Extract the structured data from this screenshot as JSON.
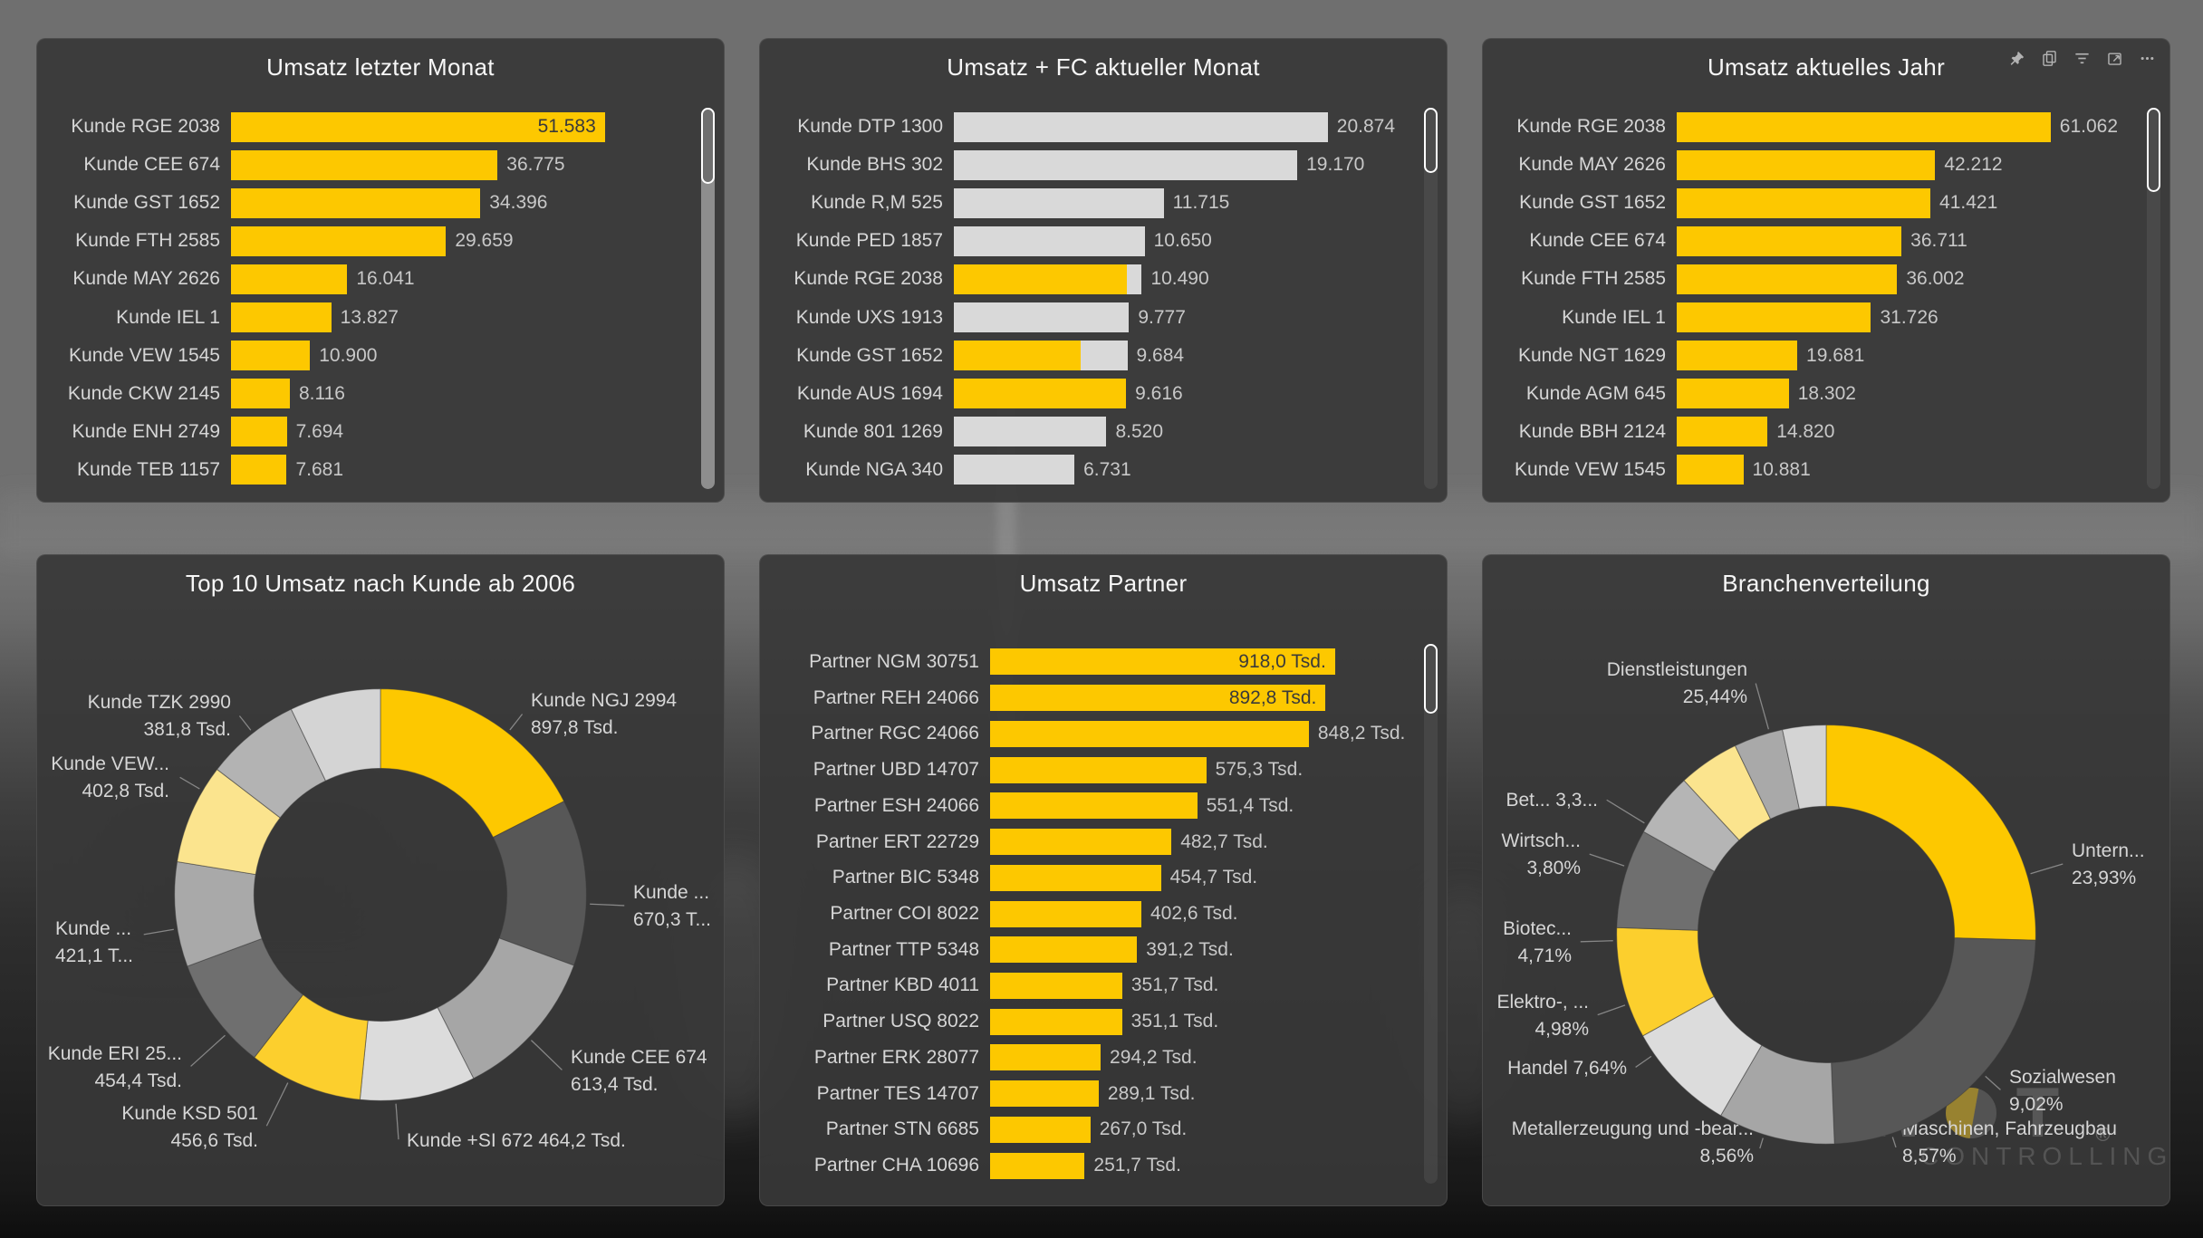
{
  "watermark": {
    "part1": "SW",
    "part2": "T",
    "registered": "®",
    "subtitle": "CONTROLLING"
  },
  "ui": {
    "visual_header_icons": [
      "pin",
      "copy",
      "filter",
      "focus-mode",
      "more-options"
    ],
    "accent_color": "#FDC800",
    "panel_background": "#3A3A3A"
  },
  "chart_data": [
    {
      "id": "umsatz-letzter-monat",
      "type": "bar",
      "orientation": "horizontal",
      "title": "Umsatz letzter Monat",
      "bar_color": "#FDC800",
      "categories": [
        "Kunde RGE 2038",
        "Kunde CEE 674",
        "Kunde GST 1652",
        "Kunde FTH 2585",
        "Kunde MAY 2626",
        "Kunde IEL 1",
        "Kunde VEW 1545",
        "Kunde CKW 2145",
        "Kunde ENH 2749",
        "Kunde TEB 1157"
      ],
      "values": [
        51583,
        36775,
        34396,
        29659,
        16041,
        13827,
        10900,
        8116,
        7694,
        7681
      ],
      "value_labels": [
        "51.583",
        "36.775",
        "34.396",
        "29.659",
        "16.041",
        "13.827",
        "10.900",
        "8.116",
        "7.694",
        "7.681"
      ],
      "inside_labels": [
        true,
        false,
        false,
        false,
        false,
        false,
        false,
        false,
        false,
        false
      ]
    },
    {
      "id": "umsatz-fc-aktueller-monat",
      "type": "bar",
      "orientation": "horizontal",
      "title": "Umsatz + FC aktueller Monat",
      "actual_color": "#FDC800",
      "forecast_color": "#D9D9D9",
      "categories": [
        "Kunde DTP 1300",
        "Kunde BHS 302",
        "Kunde R,M 525",
        "Kunde PED 1857",
        "Kunde RGE 2038",
        "Kunde UXS 1913",
        "Kunde GST 1652",
        "Kunde AUS 1694",
        "Kunde 801 1269",
        "Kunde NGA 340"
      ],
      "values": [
        20874,
        19170,
        11715,
        10650,
        10490,
        9777,
        9684,
        9616,
        8520,
        6731
      ],
      "value_labels": [
        "20.874",
        "19.170",
        "11.715",
        "10.650",
        "10.490",
        "9.777",
        "9.684",
        "9.616",
        "8.520",
        "6.731"
      ],
      "actual_fraction": [
        0,
        0,
        0,
        0,
        0.92,
        0,
        0.73,
        1,
        0,
        0
      ],
      "inside_labels": [
        false,
        false,
        false,
        false,
        false,
        false,
        false,
        false,
        false,
        false
      ]
    },
    {
      "id": "umsatz-aktuelles-jahr",
      "type": "bar",
      "orientation": "horizontal",
      "title": "Umsatz aktuelles Jahr",
      "bar_color": "#FDC800",
      "categories": [
        "Kunde RGE 2038",
        "Kunde MAY 2626",
        "Kunde GST 1652",
        "Kunde CEE 674",
        "Kunde FTH 2585",
        "Kunde IEL 1",
        "Kunde NGT 1629",
        "Kunde AGM 645",
        "Kunde BBH 2124",
        "Kunde VEW 1545"
      ],
      "values": [
        61062,
        42212,
        41421,
        36711,
        36002,
        31726,
        19681,
        18302,
        14820,
        10881
      ],
      "value_labels": [
        "61.062",
        "42.212",
        "41.421",
        "36.711",
        "36.002",
        "31.726",
        "19.681",
        "18.302",
        "14.820",
        "10.881"
      ],
      "inside_labels": [
        false,
        false,
        false,
        false,
        false,
        false,
        false,
        false,
        false,
        false
      ]
    },
    {
      "id": "top10-umsatz-nach-kunde-ab-2006",
      "type": "pie",
      "subtype": "donut",
      "title": "Top 10 Umsatz nach Kunde ab 2006",
      "segments": [
        {
          "label": "Kunde NGJ 2994",
          "value_label": "897,8 Tsd.",
          "value": 897.8,
          "color": "#FDC800"
        },
        {
          "label": "Kunde ...",
          "value_label": "670,3 T...",
          "value": 670.3,
          "color": "#575757"
        },
        {
          "label": "Kunde CEE 674",
          "value_label": "613,4 Tsd.",
          "value": 613.4,
          "color": "#A6A6A6"
        },
        {
          "label": "Kunde +SI 672 464,2 Tsd.",
          "value_label": "",
          "value": 464.2,
          "color": "#DCDCDC",
          "single_line": true
        },
        {
          "label": "Kunde KSD 501",
          "value_label": "456,6 Tsd.",
          "value": 456.6,
          "color": "#FCCF2D"
        },
        {
          "label": "Kunde ERI 25...",
          "value_label": "454,4 Tsd.",
          "value": 454.4,
          "color": "#6F6F6F"
        },
        {
          "label": "Kunde ...",
          "value_label": "421,1 T...",
          "value": 421.1,
          "color": "#A9A9A9"
        },
        {
          "label": "Kunde VEW...",
          "value_label": "402,8 Tsd.",
          "value": 402.8,
          "color": "#FBE48E"
        },
        {
          "label": "Kunde TZK 2990",
          "value_label": "381,8 Tsd.",
          "value": 381.8,
          "color": "#B3B3B3"
        },
        {
          "label": "",
          "value_label": "",
          "value": 366,
          "color": "#D4D4D4"
        }
      ]
    },
    {
      "id": "umsatz-partner",
      "type": "bar",
      "orientation": "horizontal",
      "title": "Umsatz Partner",
      "bar_color": "#FDC800",
      "categories": [
        "Partner NGM 30751",
        "Partner REH 24066",
        "Partner RGC 24066",
        "Partner UBD 14707",
        "Partner ESH 24066",
        "Partner ERT 22729",
        "Partner BIC 5348",
        "Partner COI 8022",
        "Partner TTP 5348",
        "Partner KBD 4011",
        "Partner USQ 8022",
        "Partner ERK 28077",
        "Partner TES 14707",
        "Partner STN 6685",
        "Partner CHA 10696"
      ],
      "values": [
        918.0,
        892.8,
        848.2,
        575.3,
        551.4,
        482.7,
        454.7,
        402.6,
        391.2,
        351.7,
        351.1,
        294.2,
        289.1,
        267.0,
        251.7
      ],
      "value_labels": [
        "918,0 Tsd.",
        "892,8 Tsd.",
        "848,2 Tsd.",
        "575,3 Tsd.",
        "551,4 Tsd.",
        "482,7 Tsd.",
        "454,7 Tsd.",
        "402,6 Tsd.",
        "391,2 Tsd.",
        "351,7 Tsd.",
        "351,1 Tsd.",
        "294,2 Tsd.",
        "289,1 Tsd.",
        "267,0 Tsd.",
        "251,7 Tsd."
      ],
      "inside_labels": [
        true,
        true,
        false,
        false,
        false,
        false,
        false,
        false,
        false,
        false,
        false,
        false,
        false,
        false,
        false
      ]
    },
    {
      "id": "branchenverteilung",
      "type": "pie",
      "subtype": "donut",
      "title": "Branchenverteilung",
      "segments": [
        {
          "label": "Dienstleistungen",
          "value_label": "25,44%",
          "value": 25.44,
          "color": "#FDC800"
        },
        {
          "label": "Untern...",
          "value_label": "23,93%",
          "value": 23.93,
          "color": "#575757"
        },
        {
          "label": "Sozialwesen",
          "value_label": "9,02%",
          "value": 9.02,
          "color": "#A6A6A6"
        },
        {
          "label": "Maschinen, Fahrzeugbau",
          "value_label": "8,57%",
          "value": 8.57,
          "color": "#DCDCDC"
        },
        {
          "label": "Metallerzeugung und -bear...",
          "value_label": "8,56%",
          "value": 8.56,
          "color": "#FCCF2D"
        },
        {
          "label": "Handel 7,64%",
          "value_label": "",
          "value": 7.64,
          "color": "#6F6F6F",
          "single_line": true
        },
        {
          "label": "Elektro-, ...",
          "value_label": "4,98%",
          "value": 4.98,
          "color": "#B5B5B5"
        },
        {
          "label": "Biotec...",
          "value_label": "4,71%",
          "value": 4.71,
          "color": "#FBE48E"
        },
        {
          "label": "Wirtsch...",
          "value_label": "3,80%",
          "value": 3.8,
          "color": "#A9A9A9"
        },
        {
          "label": "Bet... 3,3...",
          "value_label": "",
          "value": 3.35,
          "color": "#D4D4D4",
          "single_line": true
        }
      ]
    }
  ]
}
